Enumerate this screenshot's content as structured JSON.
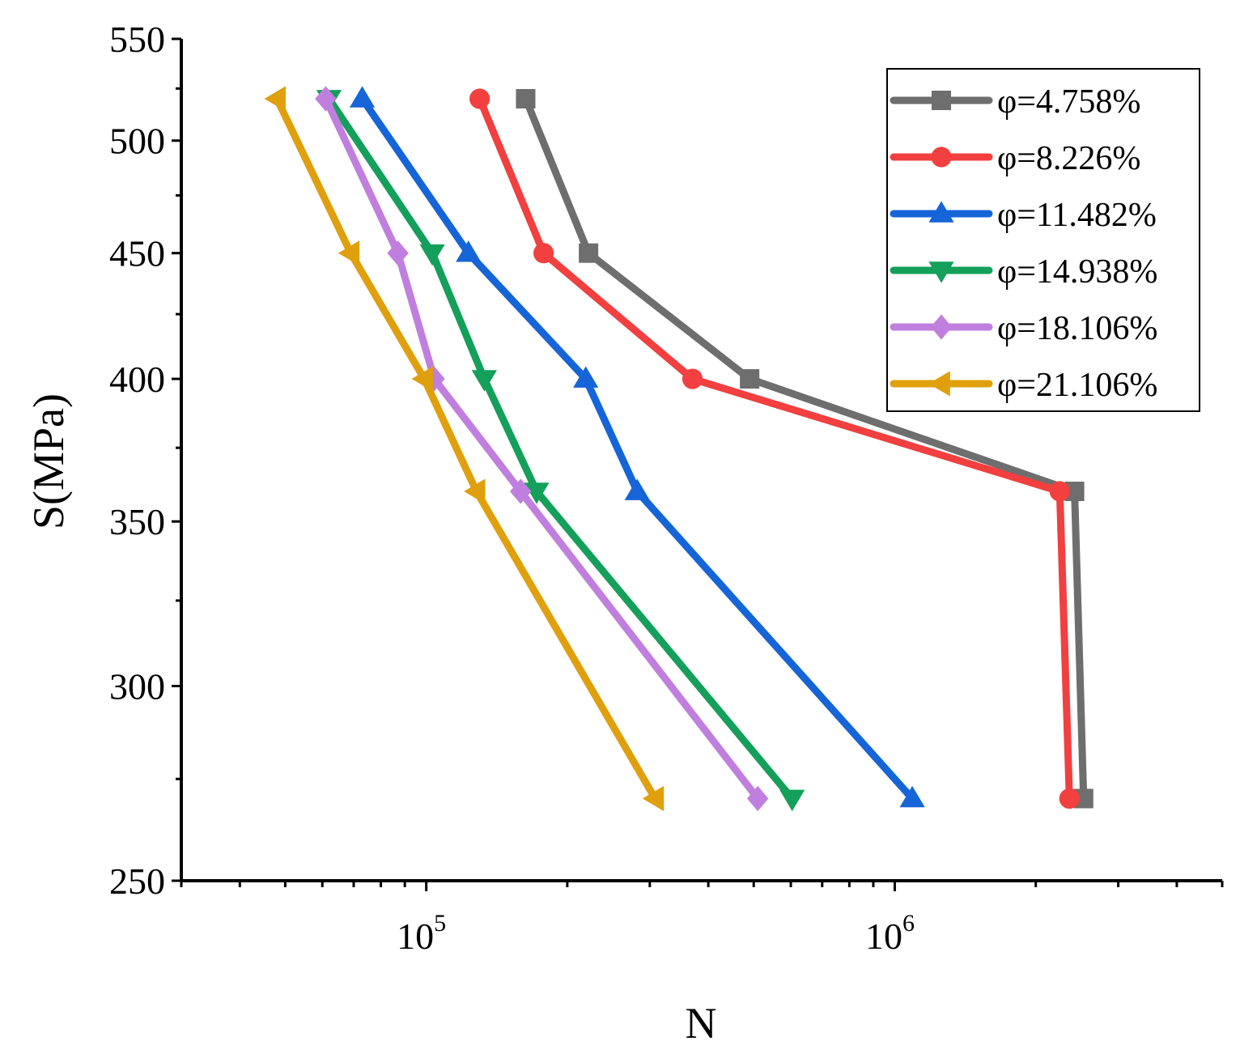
{
  "chart_data": {
    "type": "line",
    "title": "",
    "xlabel": "N",
    "ylabel": "S(MPa)",
    "xscale": "log",
    "xlim": [
      30000,
      5000000
    ],
    "ylim": [
      250,
      550
    ],
    "yscale": "log",
    "x_ticks": [
      {
        "value": 100000,
        "base": "10",
        "exp": "5"
      },
      {
        "value": 1000000,
        "base": "10",
        "exp": "6"
      }
    ],
    "y_ticks": [
      {
        "value": 250,
        "label": "250"
      },
      {
        "value": 300,
        "label": "300"
      },
      {
        "value": 350,
        "label": "350"
      },
      {
        "value": 400,
        "label": "400"
      },
      {
        "value": 450,
        "label": "450"
      },
      {
        "value": 500,
        "label": "500"
      },
      {
        "value": 550,
        "label": "550"
      }
    ],
    "legend_position": "top-right",
    "series": [
      {
        "name": "φ=4.758%",
        "color": "#6e6e6e",
        "marker": "square",
        "points": [
          [
            163000,
            520
          ],
          [
            222000,
            450
          ],
          [
            490000,
            400
          ],
          [
            2420000,
            360
          ],
          [
            2530000,
            270
          ]
        ]
      },
      {
        "name": "φ=8.226%",
        "color": "#f23f3f",
        "marker": "circle",
        "points": [
          [
            130000,
            520
          ],
          [
            178000,
            450
          ],
          [
            370000,
            400
          ],
          [
            2250000,
            360
          ],
          [
            2360000,
            270
          ]
        ]
      },
      {
        "name": "φ=11.482%",
        "color": "#1565d8",
        "marker": "triangle-up",
        "points": [
          [
            73000,
            520
          ],
          [
            123000,
            450
          ],
          [
            219000,
            400
          ],
          [
            282000,
            360
          ],
          [
            1090000,
            270
          ]
        ]
      },
      {
        "name": "φ=14.938%",
        "color": "#14a05a",
        "marker": "triangle-down",
        "points": [
          [
            62000,
            520
          ],
          [
            103000,
            450
          ],
          [
            133000,
            400
          ],
          [
            172000,
            360
          ],
          [
            604000,
            270
          ]
        ]
      },
      {
        "name": "φ=18.106%",
        "color": "#c07fde",
        "marker": "diamond",
        "points": [
          [
            61000,
            520
          ],
          [
            87000,
            450
          ],
          [
            104000,
            400
          ],
          [
            159000,
            360
          ],
          [
            510000,
            270
          ]
        ]
      },
      {
        "name": "φ=21.106%",
        "color": "#e0a00d",
        "marker": "triangle-left",
        "points": [
          [
            48000,
            520
          ],
          [
            69000,
            450
          ],
          [
            99000,
            400
          ],
          [
            128000,
            360
          ],
          [
            308000,
            270
          ]
        ]
      }
    ]
  }
}
